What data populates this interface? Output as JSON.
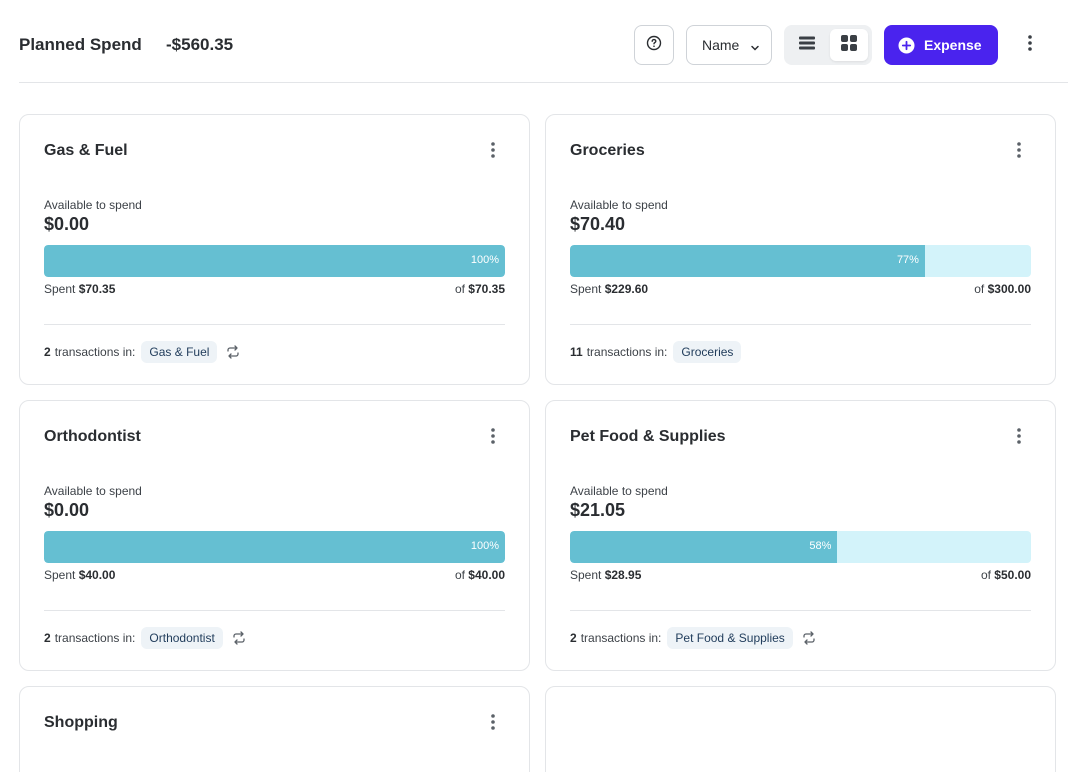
{
  "header": {
    "title": "Planned Spend",
    "total": "-$560.35",
    "help_icon": "help-circle-icon",
    "sort_label": "Name",
    "list_view_icon": "list-view-icon",
    "grid_view_icon": "grid-view-icon",
    "expense_label": "Expense",
    "more_icon": "more-vertical-icon",
    "accent_color": "#4a23ee"
  },
  "cards": [
    {
      "title": "Gas & Fuel",
      "available_label": "Available to spend",
      "available": "$0.00",
      "progress_percent": 100,
      "percent_label": "100%",
      "spent_label": "Spent",
      "spent": "$70.35",
      "of_label": "of",
      "budget": "$70.35",
      "tx_count": "2",
      "tx_label": "transactions in:",
      "category": "Gas & Fuel",
      "recurring": true
    },
    {
      "title": "Groceries",
      "available_label": "Available to spend",
      "available": "$70.40",
      "progress_percent": 77,
      "percent_label": "77%",
      "spent_label": "Spent",
      "spent": "$229.60",
      "of_label": "of",
      "budget": "$300.00",
      "tx_count": "11",
      "tx_label": "transactions in:",
      "category": "Groceries",
      "recurring": false
    },
    {
      "title": "Orthodontist",
      "available_label": "Available to spend",
      "available": "$0.00",
      "progress_percent": 100,
      "percent_label": "100%",
      "spent_label": "Spent",
      "spent": "$40.00",
      "of_label": "of",
      "budget": "$40.00",
      "tx_count": "2",
      "tx_label": "transactions in:",
      "category": "Orthodontist",
      "recurring": true
    },
    {
      "title": "Pet Food & Supplies",
      "available_label": "Available to spend",
      "available": "$21.05",
      "progress_percent": 58,
      "percent_label": "58%",
      "spent_label": "Spent",
      "spent": "$28.95",
      "of_label": "of",
      "budget": "$50.00",
      "tx_count": "2",
      "tx_label": "transactions in:",
      "category": "Pet Food & Supplies",
      "recurring": true
    },
    {
      "title": "Shopping"
    },
    {
      "title": ""
    }
  ],
  "colors": {
    "bar_fill": "#65bfd2",
    "bar_track": "#d3f3fa"
  }
}
